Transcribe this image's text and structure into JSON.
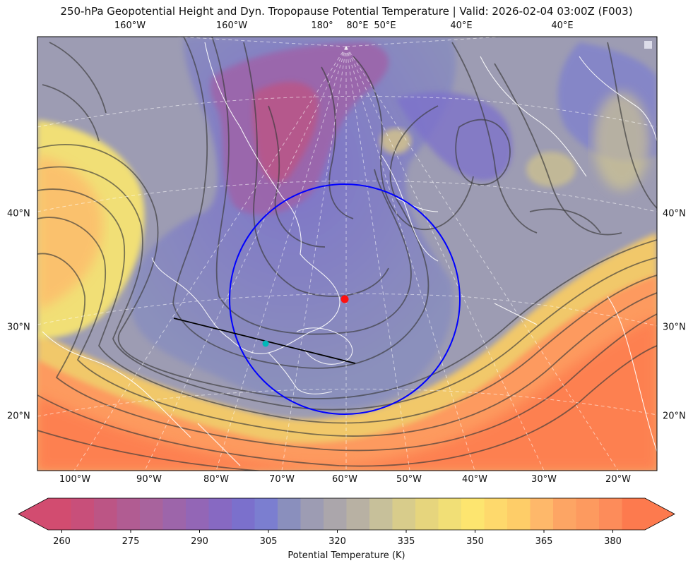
{
  "title": "250-hPa Geopotential Height and Dyn. Tropopause Potential Temperature   |  Valid: 2026-02-04 03:00Z (F003)",
  "top_labels": [
    "160°W",
    "160°W",
    "180°",
    "80°E",
    "50°E",
    "40°E",
    "40°E"
  ],
  "bottom_labels": [
    "100°W",
    "90°W",
    "80°W",
    "70°W",
    "60°W",
    "50°W",
    "40°W",
    "30°W",
    "20°W"
  ],
  "left_labels": [
    "40°N",
    "30°N",
    "20°N"
  ],
  "right_labels": [
    "40°N",
    "30°N",
    "20°N"
  ],
  "colorbar": {
    "title": "Potential Temperature (K)",
    "tick_labels": [
      "260",
      "275",
      "290",
      "305",
      "320",
      "335",
      "350",
      "365",
      "380"
    ],
    "colors": [
      "#d24c70",
      "#c84f7a",
      "#bc5585",
      "#b15c92",
      "#a8639d",
      "#9d65aa",
      "#9366b6",
      "#8769c2",
      "#7b70cc",
      "#7b7ed0",
      "#8a8fbd",
      "#9d9cb3",
      "#aba6ab",
      "#b8b1a3",
      "#c7c09a",
      "#d8cc8b",
      "#e6d57d",
      "#f1df76",
      "#fde56f",
      "#fed96c",
      "#fecd68",
      "#feb86a",
      "#fda564",
      "#fd9a5f",
      "#fd8c5a",
      "#fd7a4e"
    ],
    "range": [
      257,
      387
    ]
  },
  "chart_data": {
    "type": "map",
    "title": "250-hPa Geopotential Height and Dyn. Tropopause Potential Temperature",
    "valid": "2026-02-04 03:00Z (F003)",
    "overlays": [
      {
        "name": "circle",
        "color": "#0000ff"
      },
      {
        "name": "cross-section-line",
        "color": "#000000"
      },
      {
        "name": "center-marker",
        "color": "#ff0000"
      },
      {
        "name": "endpoint-marker",
        "color": "#00c0c0"
      }
    ]
  }
}
